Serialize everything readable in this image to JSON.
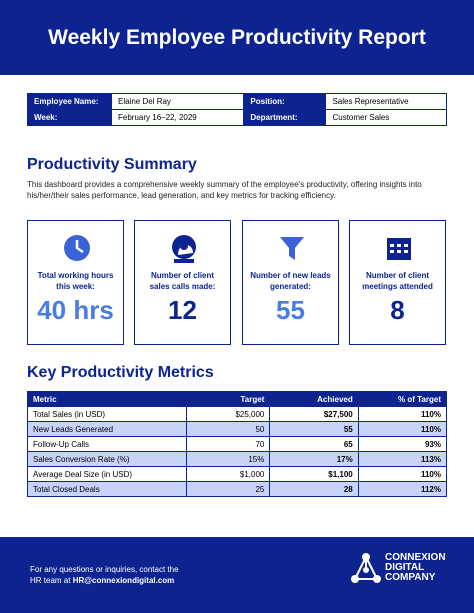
{
  "header": {
    "title": "Weekly Employee Productivity Report"
  },
  "info": {
    "rows": [
      [
        "Employee Name:",
        "Elaine Del Ray",
        "Position:",
        "Sales Representative"
      ],
      [
        "Week:",
        "February 16–22, 2029",
        "Department:",
        "Customer Sales"
      ]
    ]
  },
  "summary": {
    "heading": "Productivity Summary",
    "text": "This dashboard provides a comprehensive weekly summary of the employee's productivity, offering insights into his/her/their sales performance, lead generation, and key metrics for tracking efficiency."
  },
  "cards": [
    {
      "label": "Total working hours this week:",
      "value": "40 hrs"
    },
    {
      "label": "Number of client sales calls made:",
      "value": "12"
    },
    {
      "label": "Number of new leads generated:",
      "value": "55"
    },
    {
      "label": "Number of client meetings attended",
      "value": "8"
    }
  ],
  "metrics": {
    "heading": "Key Productivity Metrics",
    "columns": [
      "Metric",
      "Target",
      "Achieved",
      "% of Target"
    ],
    "rows": [
      [
        "Total Sales (in USD)",
        "$25,000",
        "$27,500",
        "110%"
      ],
      [
        "New Leads Generated",
        "50",
        "55",
        "110%"
      ],
      [
        "Follow-Up Calls",
        "70",
        "65",
        "93%"
      ],
      [
        "Sales Conversion Rate (%)",
        "15%",
        "17%",
        "113%"
      ],
      [
        "Average Deal Size (in USD)",
        "$1,000",
        "$1,100",
        "110%"
      ],
      [
        "Total Closed Deals",
        "25",
        "28",
        "112%"
      ]
    ]
  },
  "footer": {
    "contact": "For any questions or inquiries, contact the",
    "contact_prefix": "HR team at",
    "email": "HR@connexiondigital.com",
    "company": [
      "CONNEXION",
      "DIGITAL",
      "COMPANY"
    ]
  }
}
